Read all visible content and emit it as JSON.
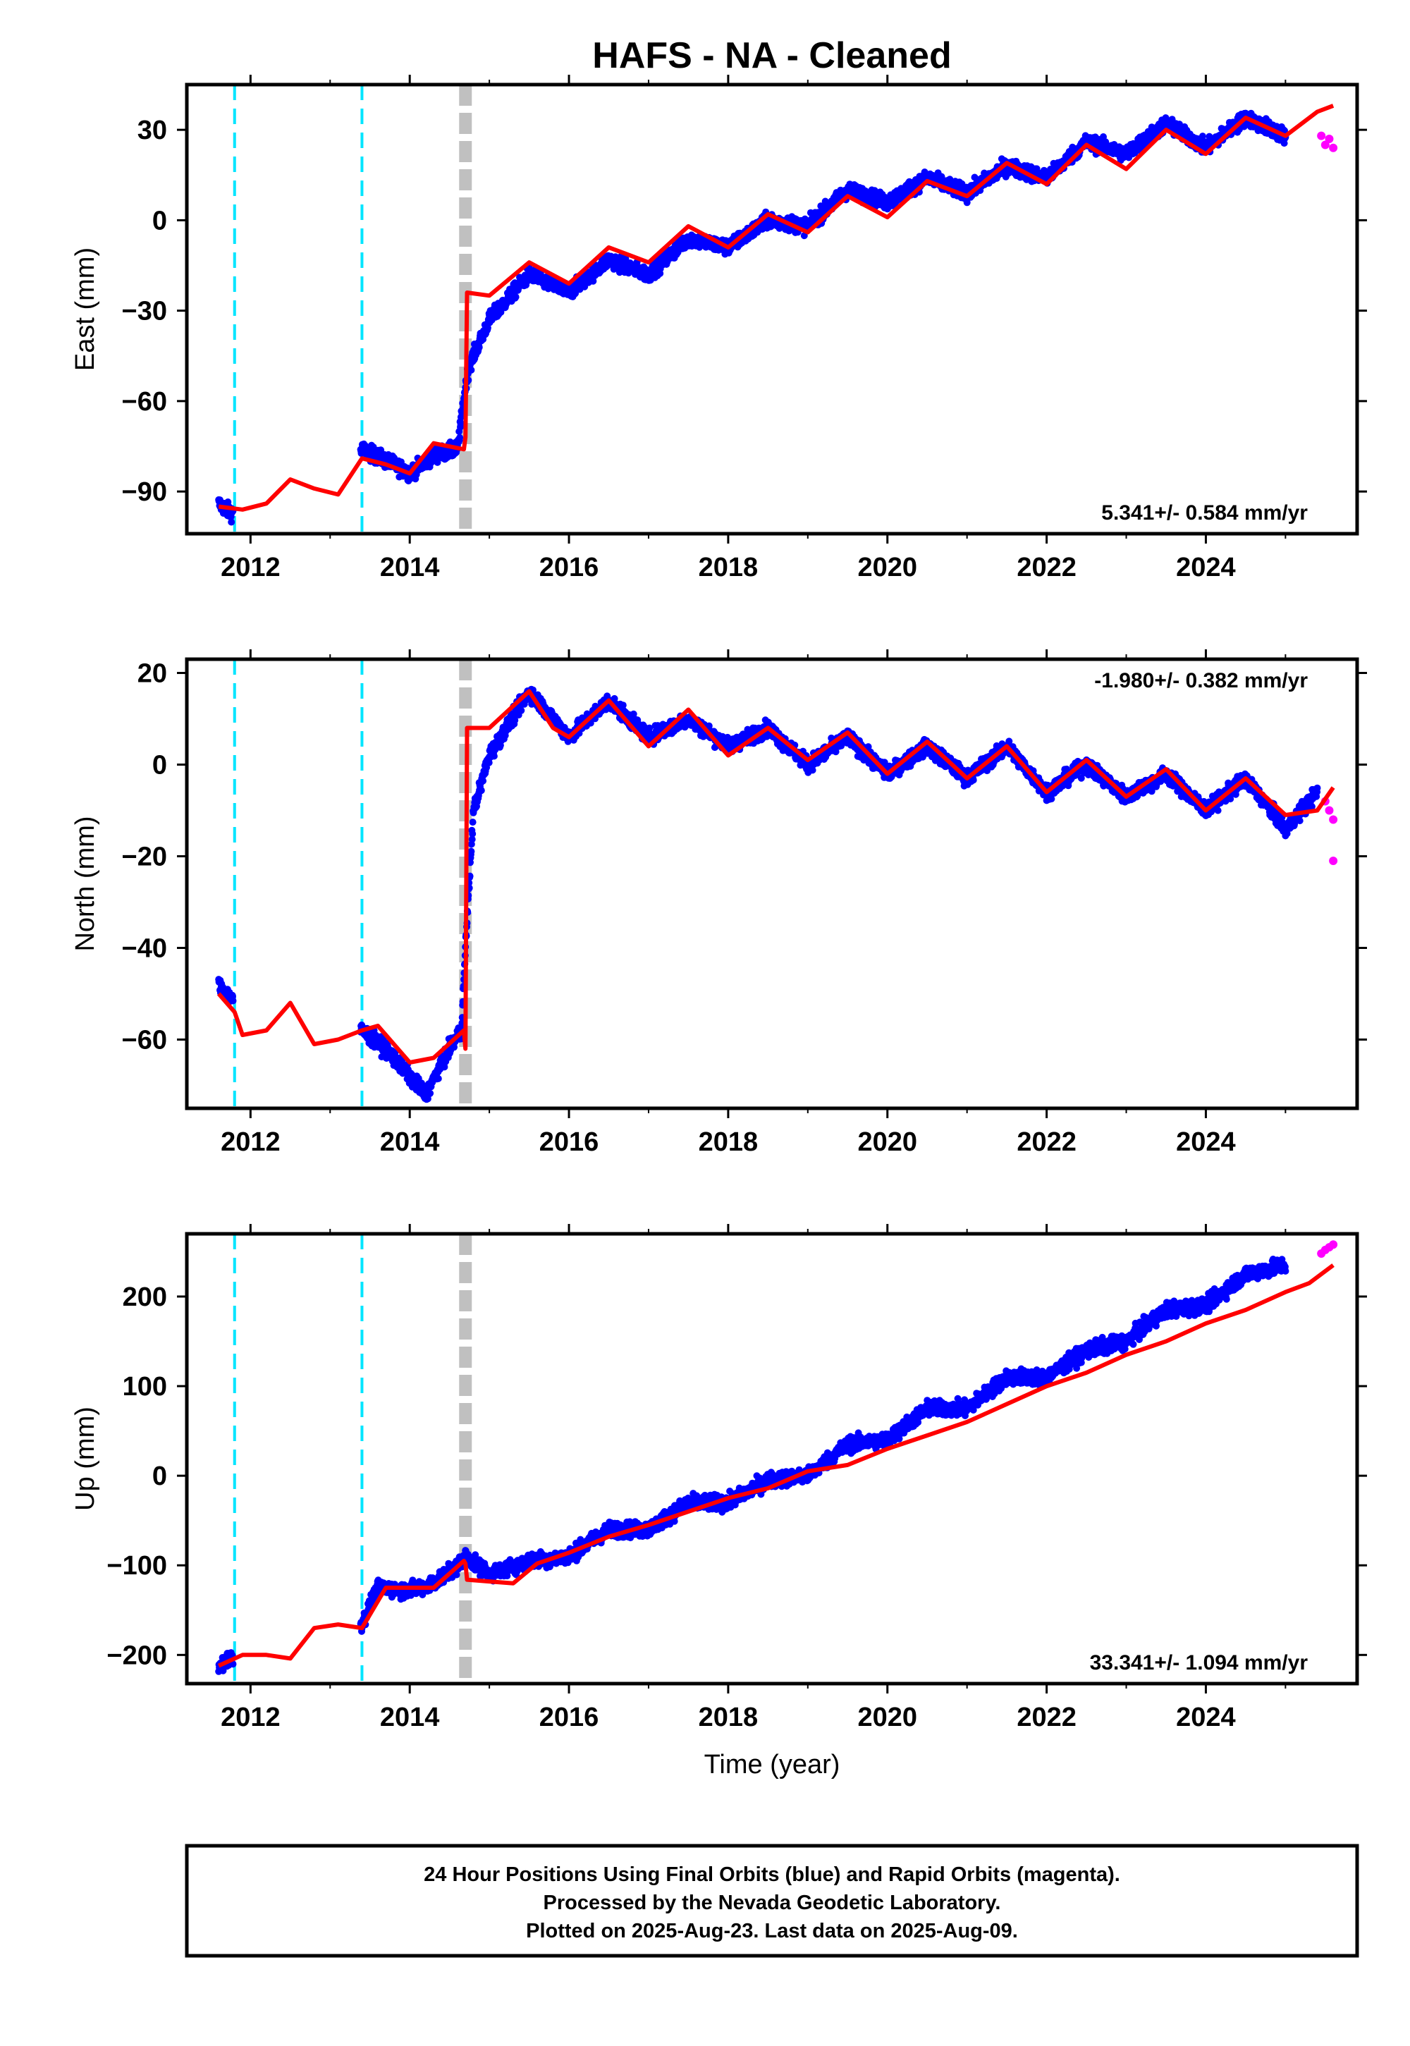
{
  "title": "HAFS  - NA - Cleaned",
  "xlabel": "Time (year)",
  "x_ticks": [
    2012,
    2014,
    2016,
    2018,
    2020,
    2022,
    2024
  ],
  "xlim": [
    2011.2,
    2025.9
  ],
  "colors": {
    "final_orbits": "#0000ff",
    "rapid_orbits": "#ff00ff",
    "model": "#ff0000",
    "antenna_change": "#00e5ff",
    "earthquake": "#c0c0c0"
  },
  "event_lines": {
    "cyan_dashed": [
      2011.8,
      2013.4
    ],
    "gray_thick_dashed": [
      2014.7
    ]
  },
  "footer": {
    "line1": "24 Hour Positions Using Final Orbits (blue) and Rapid Orbits (magenta).",
    "line2": "Processed by the Nevada Geodetic Laboratory.",
    "line3": "Plotted on 2025-Aug-23. Last data on 2025-Aug-09."
  },
  "chart_data": [
    {
      "type": "scatter",
      "component": "east",
      "ylabel": "East (mm)",
      "rate_label": "5.341+/- 0.584 mm/yr",
      "rate_position": "bottom-right",
      "ylim": [
        -104,
        45
      ],
      "y_ticks": [
        30,
        0,
        -30,
        -60,
        -90
      ],
      "y_tick_labels": [
        "30",
        "0",
        "−30",
        "−60",
        "−90"
      ],
      "final_orbits_trend": {
        "x": [
          2011.6,
          2011.75,
          2013.4,
          2013.8,
          2014.0,
          2014.3,
          2014.6,
          2014.7,
          2014.75,
          2015.0,
          2015.5,
          2016.0,
          2016.5,
          2017.0,
          2017.5,
          2018.0,
          2018.5,
          2019.0,
          2019.5,
          2020.0,
          2020.5,
          2021.0,
          2021.5,
          2022.0,
          2022.5,
          2023.0,
          2023.5,
          2024.0,
          2024.5,
          2025.0
        ],
        "y": [
          -94,
          -97,
          -76,
          -81,
          -84,
          -78,
          -76,
          -55,
          -48,
          -33,
          -18,
          -24,
          -13,
          -18,
          -6,
          -9,
          0,
          -2,
          10,
          6,
          14,
          9,
          18,
          14,
          26,
          22,
          32,
          24,
          34,
          28
        ]
      },
      "rapid_orbits": {
        "x": [
          2025.45,
          2025.5,
          2025.55,
          2025.6
        ],
        "y": [
          28,
          25,
          27,
          24
        ]
      },
      "model": {
        "x": [
          2011.6,
          2011.9,
          2012.2,
          2012.5,
          2012.8,
          2013.1,
          2013.4,
          2013.7,
          2014.0,
          2014.3,
          2014.68,
          2014.7,
          2014.72,
          2015.0,
          2015.5,
          2016.0,
          2016.5,
          2017.0,
          2017.5,
          2018.0,
          2018.5,
          2019.0,
          2019.5,
          2020.0,
          2020.5,
          2021.0,
          2021.5,
          2022.0,
          2022.5,
          2023.0,
          2023.5,
          2024.0,
          2024.5,
          2025.0,
          2025.4,
          2025.6
        ],
        "y": [
          -95,
          -96,
          -94,
          -86,
          -89,
          -91,
          -79,
          -81,
          -84,
          -74,
          -76,
          -72,
          -24,
          -25,
          -14,
          -21,
          -9,
          -14,
          -2,
          -9,
          2,
          -4,
          8,
          1,
          13,
          8,
          19,
          12,
          25,
          17,
          30,
          22,
          34,
          28,
          36,
          38
        ]
      }
    },
    {
      "type": "scatter",
      "component": "north",
      "ylabel": "North (mm)",
      "rate_label": "-1.980+/- 0.382 mm/yr",
      "rate_position": "top-right",
      "ylim": [
        -75,
        23
      ],
      "y_ticks": [
        20,
        0,
        -20,
        -40,
        -60
      ],
      "y_tick_labels": [
        "20",
        "0",
        "−20",
        "−40",
        "−60"
      ],
      "final_orbits_trend": {
        "x": [
          2011.6,
          2011.75,
          2013.4,
          2013.7,
          2014.0,
          2014.2,
          2014.5,
          2014.65,
          2014.7,
          2014.8,
          2015.0,
          2015.5,
          2016.0,
          2016.5,
          2017.0,
          2017.5,
          2018.0,
          2018.5,
          2019.0,
          2019.5,
          2020.0,
          2020.5,
          2021.0,
          2021.5,
          2022.0,
          2022.5,
          2023.0,
          2023.5,
          2024.0,
          2024.5,
          2025.0,
          2025.4
        ],
        "y": [
          -48,
          -51,
          -58,
          -62,
          -68,
          -72,
          -62,
          -58,
          -40,
          -10,
          2,
          16,
          6,
          14,
          6,
          10,
          4,
          8,
          0,
          6,
          -2,
          4,
          -3,
          4,
          -6,
          0,
          -7,
          -2,
          -10,
          -3,
          -14,
          -6
        ]
      },
      "rapid_orbits": {
        "x": [
          2025.5,
          2025.55,
          2025.6,
          2025.6
        ],
        "y": [
          -8,
          -10,
          -12,
          -21
        ]
      },
      "model": {
        "x": [
          2011.6,
          2011.8,
          2011.9,
          2012.2,
          2012.5,
          2012.8,
          2013.1,
          2013.4,
          2013.6,
          2014.0,
          2014.3,
          2014.68,
          2014.7,
          2014.72,
          2015.0,
          2015.5,
          2015.8,
          2016.0,
          2016.5,
          2017.0,
          2017.5,
          2018.0,
          2018.5,
          2019.0,
          2019.5,
          2020.0,
          2020.5,
          2021.0,
          2021.5,
          2022.0,
          2022.5,
          2023.0,
          2023.5,
          2024.0,
          2024.5,
          2025.0,
          2025.4,
          2025.6
        ],
        "y": [
          -50,
          -54,
          -59,
          -58,
          -52,
          -61,
          -60,
          -58,
          -57,
          -65,
          -64,
          -58,
          -62,
          8,
          8,
          16,
          8,
          6,
          14,
          4,
          12,
          2,
          8,
          1,
          7,
          -2,
          5,
          -3,
          4,
          -6,
          1,
          -7,
          -1,
          -10,
          -3,
          -11,
          -10,
          -5
        ]
      }
    },
    {
      "type": "scatter",
      "component": "up",
      "ylabel": "Up (mm)",
      "rate_label": "33.341+/- 1.094 mm/yr",
      "rate_position": "bottom-right",
      "ylim": [
        -232,
        270
      ],
      "y_ticks": [
        200,
        100,
        0,
        -100,
        -200
      ],
      "y_tick_labels": [
        "200",
        "100",
        "0",
        "−100",
        "−200"
      ],
      "final_orbits_trend": {
        "x": [
          2011.6,
          2011.7,
          2013.4,
          2013.6,
          2014.0,
          2014.3,
          2014.6,
          2014.7,
          2015.0,
          2015.5,
          2016.0,
          2016.5,
          2017.0,
          2017.5,
          2018.0,
          2018.5,
          2019.0,
          2019.5,
          2020.0,
          2020.5,
          2021.0,
          2021.5,
          2022.0,
          2022.5,
          2023.0,
          2023.5,
          2024.0,
          2024.5,
          2025.0
        ],
        "y": [
          -215,
          -205,
          -165,
          -125,
          -128,
          -120,
          -100,
          -90,
          -110,
          -95,
          -90,
          -60,
          -60,
          -30,
          -30,
          -5,
          0,
          35,
          40,
          75,
          75,
          110,
          110,
          140,
          150,
          185,
          190,
          225,
          235
        ]
      },
      "rapid_orbits": {
        "x": [
          2025.45,
          2025.5,
          2025.55,
          2025.6
        ],
        "y": [
          248,
          252,
          255,
          258
        ]
      },
      "model": {
        "x": [
          2011.6,
          2011.9,
          2012.2,
          2012.5,
          2012.8,
          2013.1,
          2013.4,
          2013.7,
          2014.0,
          2014.3,
          2014.68,
          2014.7,
          2014.72,
          2015.0,
          2015.3,
          2015.6,
          2016.0,
          2016.5,
          2017.0,
          2017.5,
          2018.0,
          2018.5,
          2019.0,
          2019.5,
          2020.0,
          2020.5,
          2021.0,
          2021.5,
          2022.0,
          2022.5,
          2023.0,
          2023.5,
          2024.0,
          2024.5,
          2025.0,
          2025.3,
          2025.6
        ],
        "y": [
          -212,
          -200,
          -200,
          -204,
          -170,
          -166,
          -170,
          -125,
          -125,
          -125,
          -95,
          -98,
          -116,
          -118,
          -120,
          -98,
          -86,
          -68,
          -55,
          -40,
          -25,
          -14,
          5,
          12,
          30,
          45,
          60,
          80,
          100,
          115,
          135,
          150,
          170,
          185,
          205,
          215,
          235
        ]
      }
    }
  ]
}
